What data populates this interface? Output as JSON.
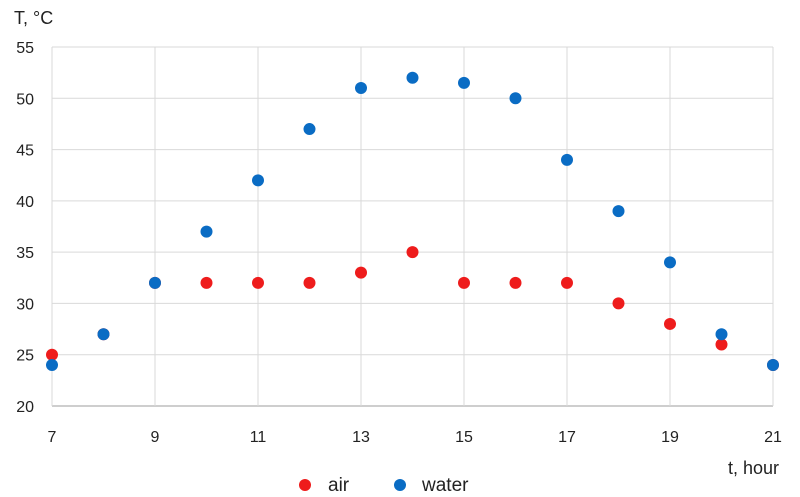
{
  "chart_data": {
    "type": "scatter",
    "ylabel": "T, °C",
    "xlabel": "t, hour",
    "xlim": [
      7,
      21
    ],
    "ylim": [
      20,
      55
    ],
    "x_ticks": [
      7,
      9,
      11,
      13,
      15,
      17,
      19,
      21
    ],
    "y_ticks": [
      20,
      25,
      30,
      35,
      40,
      45,
      50,
      55
    ],
    "grid": true,
    "legend_position": "bottom",
    "series": [
      {
        "name": "air",
        "color": "#ee1c1c",
        "points": [
          [
            7,
            25
          ],
          [
            8,
            27
          ],
          [
            9,
            32
          ],
          [
            10,
            32
          ],
          [
            11,
            32
          ],
          [
            12,
            32
          ],
          [
            13,
            33
          ],
          [
            14,
            35
          ],
          [
            15,
            32
          ],
          [
            16,
            32
          ],
          [
            17,
            32
          ],
          [
            18,
            30
          ],
          [
            19,
            28
          ],
          [
            20,
            26
          ],
          [
            21,
            24
          ]
        ]
      },
      {
        "name": "water",
        "color": "#0a6cc4",
        "points": [
          [
            7,
            24
          ],
          [
            8,
            27
          ],
          [
            9,
            32
          ],
          [
            10,
            37
          ],
          [
            11,
            42
          ],
          [
            12,
            47
          ],
          [
            13,
            51
          ],
          [
            14,
            52
          ],
          [
            15,
            51.5
          ],
          [
            16,
            50
          ],
          [
            17,
            44
          ],
          [
            18,
            39
          ],
          [
            19,
            34
          ],
          [
            20,
            27
          ],
          [
            21,
            24
          ]
        ]
      }
    ]
  }
}
